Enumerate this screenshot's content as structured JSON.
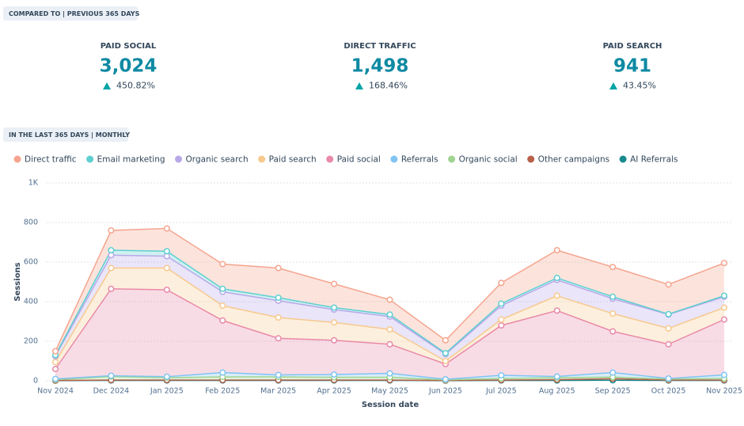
{
  "header": {
    "badge": "COMPARED TO | PREVIOUS 365 DAYS"
  },
  "kpis": [
    {
      "label": "PAID SOCIAL",
      "value": "3,024",
      "change": "450.82%"
    },
    {
      "label": "DIRECT TRAFFIC",
      "value": "1,498",
      "change": "168.46%"
    },
    {
      "label": "PAID SEARCH",
      "value": "941",
      "change": "43.45%"
    }
  ],
  "chart_badge": "IN THE LAST 365 DAYS | MONTHLY",
  "chart_data": {
    "type": "stacked-area",
    "x_label": "Session date",
    "y_label": "Sessions",
    "categories": [
      "Nov 2024",
      "Dec 2024",
      "Jan 2025",
      "Feb 2025",
      "Mar 2025",
      "Apr 2025",
      "May 2025",
      "Jun 2025",
      "Jul 2025",
      "Aug 2025",
      "Sep 2025",
      "Oct 2025",
      "Nov 2025"
    ],
    "ylim": [
      0,
      1000
    ],
    "yticks": [
      0,
      200,
      400,
      600,
      800,
      {
        "value": 1000,
        "label": "1K"
      }
    ],
    "grid": true,
    "series": [
      {
        "name": "Direct traffic",
        "color": "#f5a58f",
        "values": [
          20,
          100,
          115,
          125,
          150,
          120,
          75,
          65,
          105,
          140,
          150,
          150,
          165
        ]
      },
      {
        "name": "Email marketing",
        "color": "#5fcfd0",
        "values": [
          5,
          25,
          25,
          15,
          15,
          10,
          10,
          5,
          10,
          10,
          10,
          2,
          5
        ]
      },
      {
        "name": "Organic search",
        "color": "#b9a8e8",
        "values": [
          30,
          65,
          60,
          70,
          85,
          65,
          65,
          35,
          70,
          80,
          75,
          70,
          55
        ]
      },
      {
        "name": "Paid search",
        "color": "#f7c98f",
        "values": [
          35,
          105,
          110,
          75,
          105,
          90,
          75,
          15,
          30,
          75,
          90,
          80,
          60
        ]
      },
      {
        "name": "Paid social",
        "color": "#e98aa8",
        "values": [
          50,
          439,
          439,
          263,
          185,
          173,
          147,
          77,
          252,
          333,
          208,
          173,
          280
        ]
      },
      {
        "name": "Referrals",
        "color": "#80c4f3",
        "values": [
          4,
          4,
          5,
          22,
          10,
          14,
          20,
          3,
          16,
          6,
          23,
          3,
          18
        ]
      },
      {
        "name": "Organic social",
        "color": "#9fd491",
        "values": [
          4,
          18,
          12,
          16,
          16,
          14,
          14,
          3,
          8,
          10,
          8,
          5,
          8
        ]
      },
      {
        "name": "Other campaigns",
        "color": "#b8614a",
        "values": [
          1,
          2,
          2,
          2,
          2,
          2,
          2,
          1,
          2,
          4,
          8,
          2,
          2
        ]
      },
      {
        "name": "AI Referrals",
        "color": "#1a8a8f",
        "values": [
          1,
          2,
          2,
          2,
          2,
          2,
          2,
          1,
          2,
          2,
          3,
          2,
          2
        ]
      }
    ]
  }
}
